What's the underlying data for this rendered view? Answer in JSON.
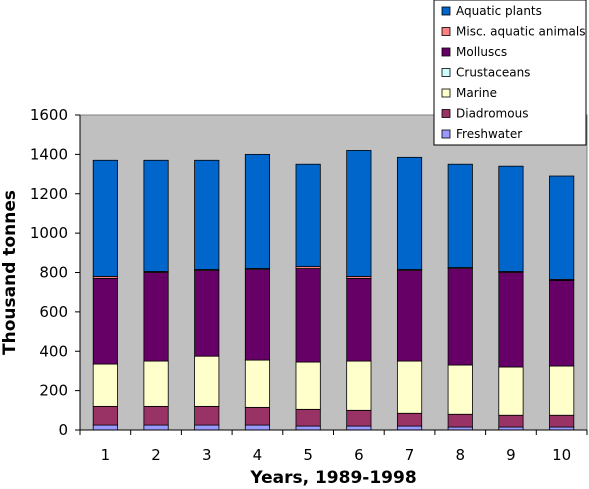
{
  "chart_data": {
    "type": "bar",
    "stacked": true,
    "categories": [
      "1",
      "2",
      "3",
      "4",
      "5",
      "6",
      "7",
      "8",
      "9",
      "10"
    ],
    "xlabel": "Years, 1989-1998",
    "ylabel": "Thousand tonnes",
    "ylim": [
      0,
      1600
    ],
    "yticks": [
      0,
      200,
      400,
      600,
      800,
      1000,
      1200,
      1400,
      1600
    ],
    "grid": false,
    "plot_background": "#C0C0C0",
    "legend_position": "top-right",
    "series": [
      {
        "name": "Freshwater",
        "color": "#9999FF",
        "values": [
          25,
          25,
          25,
          25,
          20,
          20,
          20,
          15,
          15,
          15
        ]
      },
      {
        "name": "Diadromous",
        "color": "#993366",
        "values": [
          95,
          95,
          95,
          90,
          85,
          80,
          65,
          65,
          60,
          60
        ]
      },
      {
        "name": "Marine",
        "color": "#FFFFCC",
        "values": [
          215,
          230,
          255,
          240,
          240,
          250,
          265,
          250,
          245,
          250
        ]
      },
      {
        "name": "Crustaceans",
        "color": "#CCFFFF",
        "values": [
          0,
          0,
          0,
          0,
          0,
          0,
          0,
          0,
          0,
          0
        ]
      },
      {
        "name": "Molluscs",
        "color": "#660066",
        "values": [
          435,
          450,
          435,
          460,
          475,
          420,
          460,
          490,
          480,
          435
        ]
      },
      {
        "name": "Misc. aquatic animals",
        "color": "#FF8080",
        "values": [
          10,
          5,
          5,
          5,
          10,
          10,
          5,
          5,
          5,
          5
        ]
      },
      {
        "name": "Aquatic plants",
        "color": "#0066CC",
        "values": [
          590,
          565,
          555,
          580,
          520,
          640,
          570,
          525,
          535,
          525
        ]
      }
    ]
  }
}
